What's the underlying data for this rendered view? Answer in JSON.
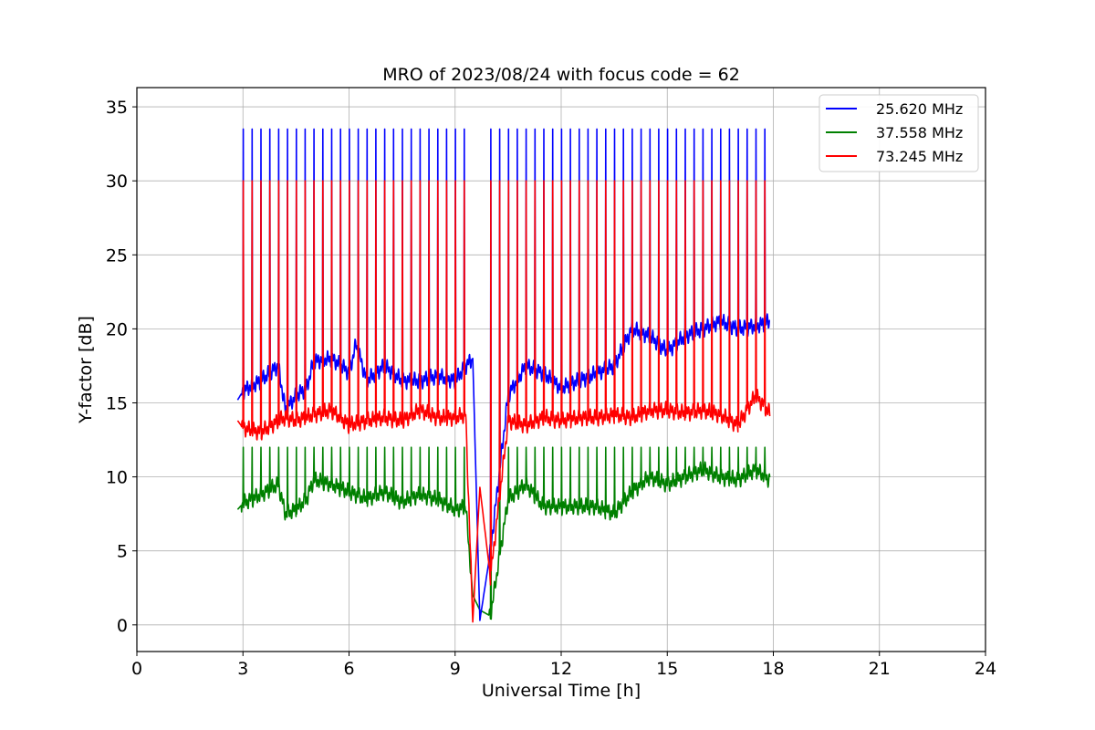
{
  "chart_data": {
    "type": "line",
    "title": "MRO of 2023/08/24 with focus code = 62",
    "xlabel": "Universal Time [h]",
    "ylabel": "Y-factor [dB]",
    "xlim": [
      0,
      24
    ],
    "ylim": [
      -1.8,
      36.3
    ],
    "xticks": [
      0,
      3,
      6,
      9,
      12,
      15,
      18,
      21,
      24
    ],
    "yticks": [
      0,
      5,
      10,
      15,
      20,
      25,
      30,
      35
    ],
    "grid": true,
    "legend_position": "top-right",
    "spike_period_h": 0.25,
    "series": [
      {
        "name": "25.620 MHz",
        "color": "#0000ff",
        "spike_top": 33.5,
        "x": [
          2.85,
          3.0,
          3.5,
          4.0,
          4.2,
          4.5,
          4.8,
          5.0,
          5.5,
          5.8,
          6.0,
          6.2,
          6.5,
          7.0,
          7.5,
          8.0,
          8.5,
          9.0,
          9.3,
          9.5,
          9.7,
          10.0,
          10.5,
          11.0,
          11.5,
          12.0,
          12.5,
          13.0,
          13.5,
          14.0,
          14.5,
          15.0,
          15.5,
          16.0,
          16.5,
          17.0,
          17.5,
          17.9
        ],
        "y": [
          15.2,
          15.8,
          16.5,
          17.5,
          14.5,
          15.5,
          16.0,
          17.8,
          18.0,
          17.5,
          17.0,
          19.0,
          16.5,
          17.5,
          16.5,
          16.5,
          16.8,
          16.5,
          17.5,
          18.0,
          0.3,
          5.0,
          15.5,
          17.5,
          17.0,
          16.0,
          16.5,
          17.0,
          17.5,
          20.0,
          19.5,
          18.5,
          19.5,
          20.0,
          20.5,
          20.0,
          20.2,
          20.5
        ]
      },
      {
        "name": "37.558 MHz",
        "color": "#008000",
        "spike_top": 12.0,
        "x": [
          2.85,
          3.0,
          3.5,
          4.0,
          4.2,
          4.5,
          4.8,
          5.0,
          5.5,
          6.0,
          6.5,
          7.0,
          7.5,
          8.0,
          8.5,
          9.0,
          9.3,
          9.5,
          9.7,
          10.0,
          10.5,
          11.0,
          11.5,
          12.0,
          12.5,
          13.0,
          13.5,
          14.0,
          14.5,
          15.0,
          15.5,
          16.0,
          16.5,
          17.0,
          17.5,
          17.9
        ],
        "y": [
          7.8,
          8.2,
          8.8,
          9.5,
          7.5,
          7.8,
          8.5,
          9.8,
          9.5,
          9.0,
          8.5,
          9.0,
          8.3,
          8.8,
          8.5,
          7.8,
          8.0,
          2.0,
          1.0,
          0.6,
          8.5,
          9.5,
          8.0,
          8.0,
          8.0,
          8.0,
          7.5,
          9.0,
          10.0,
          9.5,
          10.0,
          10.5,
          10.0,
          9.8,
          10.5,
          9.8
        ]
      },
      {
        "name": "73.245 MHz",
        "color": "#ff0000",
        "spike_top": 30.0,
        "x": [
          2.85,
          3.0,
          3.5,
          4.0,
          4.2,
          4.5,
          5.0,
          5.5,
          6.0,
          6.5,
          7.0,
          7.5,
          8.0,
          8.5,
          9.0,
          9.3,
          9.5,
          9.7,
          10.0,
          10.5,
          11.0,
          11.5,
          12.0,
          12.5,
          13.0,
          13.5,
          14.0,
          14.5,
          15.0,
          15.5,
          16.0,
          16.5,
          17.0,
          17.5,
          17.9
        ],
        "y": [
          13.8,
          13.3,
          13.0,
          13.8,
          14.0,
          13.8,
          14.2,
          14.5,
          13.5,
          13.8,
          14.0,
          13.8,
          14.5,
          14.0,
          14.0,
          14.2,
          0.2,
          9.3,
          3.2,
          13.8,
          13.5,
          14.0,
          13.8,
          14.0,
          14.0,
          14.2,
          14.0,
          14.5,
          14.5,
          14.3,
          14.5,
          14.2,
          13.5,
          15.5,
          14.3
        ]
      }
    ]
  }
}
